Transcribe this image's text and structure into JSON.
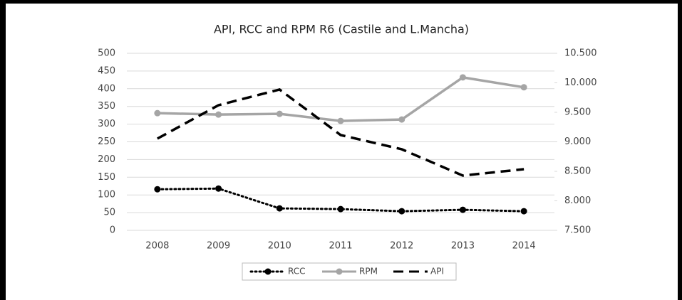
{
  "chart_data": {
    "type": "line",
    "title": "API, RCC  and RPM R6 (Castile and L.Mancha)",
    "categories": [
      "2008",
      "2009",
      "2010",
      "2011",
      "2012",
      "2013",
      "2014"
    ],
    "series": [
      {
        "name": "RCC",
        "color": "#000000",
        "line_style": "dotted",
        "marker": true,
        "values": [
          116,
          118,
          62,
          60,
          54,
          58,
          54
        ]
      },
      {
        "name": "RPM",
        "color": "#a5a5a5",
        "line_style": "solid",
        "marker": true,
        "values": [
          331,
          327,
          329,
          309,
          313,
          432,
          404
        ]
      },
      {
        "name": "API",
        "color": "#000000",
        "line_style": "dashed",
        "marker": false,
        "axis": "y2",
        "values": [
          9054,
          9621,
          9886,
          9115,
          8874,
          8428,
          8536
        ]
      }
    ],
    "ylim": [
      0,
      500
    ],
    "yticks": [
      0,
      50,
      100,
      150,
      200,
      250,
      300,
      350,
      400,
      450,
      500
    ],
    "y2lim": [
      7500,
      10500
    ],
    "y2ticks": [
      {
        "value": 7500,
        "label": "7.500"
      },
      {
        "value": 8000,
        "label": "8.000"
      },
      {
        "value": 8500,
        "label": "8.500"
      },
      {
        "value": 9000,
        "label": "9.000"
      },
      {
        "value": 9500,
        "label": "9.500"
      },
      {
        "value": 10000,
        "label": "10.000"
      },
      {
        "value": 10500,
        "label": "10.500"
      }
    ],
    "grid": true,
    "legend": "bottom"
  }
}
